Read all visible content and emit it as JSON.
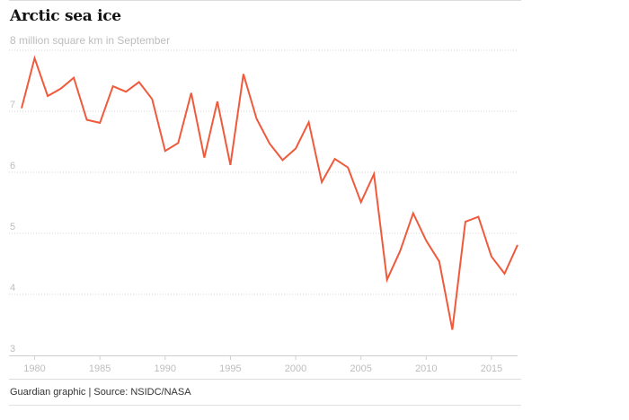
{
  "chart_data": {
    "type": "line",
    "title": "Arctic sea ice",
    "subtitle": "8 million square km in September",
    "source": "Guardian graphic | Source: NSIDC/NASA",
    "series_color": "#f05a3c",
    "grid": true,
    "xlim": [
      1979,
      2017
    ],
    "ylim": [
      3,
      8
    ],
    "x_ticks": [
      1980,
      1985,
      1990,
      1995,
      2000,
      2005,
      2010,
      2015
    ],
    "y_ticks": [
      3,
      4,
      5,
      6,
      7
    ],
    "x": [
      1979,
      1980,
      1981,
      1982,
      1983,
      1984,
      1985,
      1986,
      1987,
      1988,
      1989,
      1990,
      1991,
      1992,
      1993,
      1994,
      1995,
      1996,
      1997,
      1998,
      1999,
      2000,
      2001,
      2002,
      2003,
      2004,
      2005,
      2006,
      2007,
      2008,
      2009,
      2010,
      2011,
      2012,
      2013,
      2014,
      2015,
      2016,
      2017
    ],
    "values": [
      7.05,
      7.87,
      7.25,
      7.37,
      7.55,
      6.86,
      6.81,
      7.41,
      7.32,
      7.48,
      7.2,
      6.35,
      6.48,
      7.3,
      6.24,
      7.16,
      6.12,
      7.61,
      6.88,
      6.47,
      6.2,
      6.39,
      6.82,
      5.84,
      6.22,
      6.08,
      5.51,
      5.97,
      4.24,
      4.71,
      5.33,
      4.88,
      4.54,
      3.42,
      5.19,
      5.27,
      4.62,
      4.34,
      4.81
    ]
  }
}
